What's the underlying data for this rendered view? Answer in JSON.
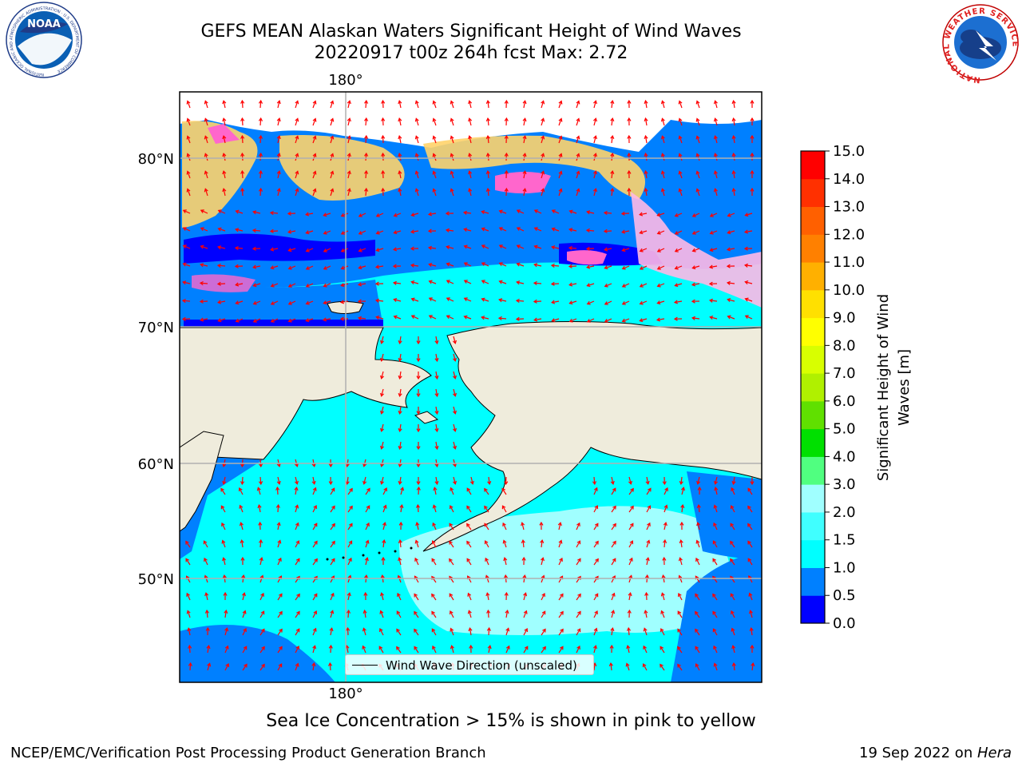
{
  "header": {
    "title_line1": "GEFS MEAN Alaskan Waters Significant Height of Wind Waves",
    "title_line2": "20220917 t00z 264h fcst   Max: 2.72",
    "noaa_logo_text": "NOAA",
    "noaa_ring_text": "NATIONAL OCEANIC AND ATMOSPHERIC ADMINISTRATION · U.S. DEPARTMENT OF COMMERCE",
    "nws_ring_text": "NATIONAL WEATHER SERVICE"
  },
  "map": {
    "lon_label_top": "180°",
    "lon_label_bottom": "180°",
    "lat_labels": [
      "80°N",
      "70°N",
      "60°N",
      "50°N"
    ],
    "legend_label": "Wind Wave Direction (unscaled)",
    "colors": {
      "land": "#efecdc",
      "ice": "#ffd36a",
      "no_data": "#ffffff",
      "arrows": "#ff0000"
    }
  },
  "colorbar": {
    "label": "Significant Height of Wind Waves [m]",
    "ticks": [
      "0.0",
      "0.5",
      "1.0",
      "1.5",
      "2.0",
      "3.0",
      "4.0",
      "5.0",
      "6.0",
      "7.0",
      "8.0",
      "9.0",
      "10.0",
      "11.0",
      "12.0",
      "13.0",
      "14.0",
      "15.0"
    ],
    "colors": [
      "#0000ff",
      "#0080ff",
      "#00ffff",
      "#40ffff",
      "#a0ffff",
      "#50ff80",
      "#00e000",
      "#60e000",
      "#b0f000",
      "#d8ff00",
      "#ffff00",
      "#ffe000",
      "#ffb000",
      "#ff8000",
      "#ff6000",
      "#ff3000",
      "#ff0000"
    ]
  },
  "caption": "Sea Ice Concentration > 15% is shown in pink to yellow",
  "footer": {
    "left": "NCEP/EMC/Verification Post Processing Product Generation Branch",
    "right_date": "19 Sep 2022 on ",
    "right_host": "Hera"
  }
}
